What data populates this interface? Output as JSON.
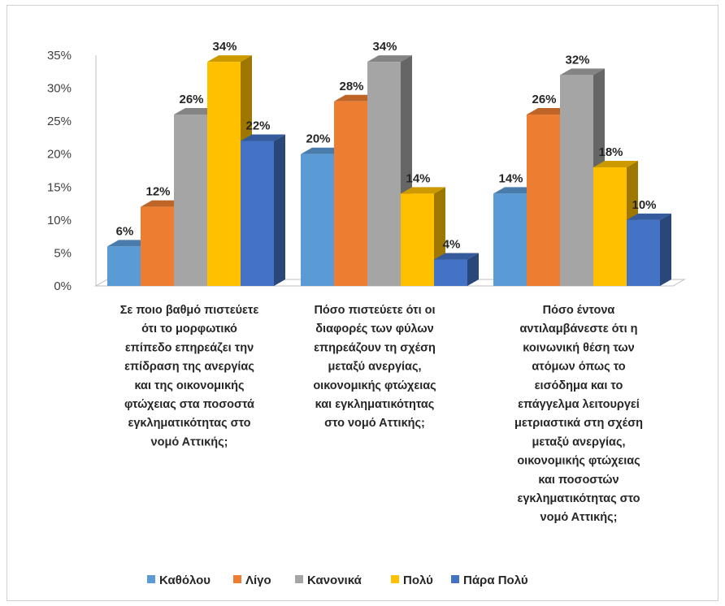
{
  "chart_data": {
    "type": "bar",
    "title": "",
    "xlabel": "",
    "ylabel": "",
    "ylim": [
      0,
      35
    ],
    "yticks": [
      "0%",
      "5%",
      "10%",
      "15%",
      "20%",
      "25%",
      "30%",
      "35%"
    ],
    "yticks_values": [
      0,
      5,
      10,
      15,
      20,
      25,
      30,
      35
    ],
    "grid": false,
    "legend_position": "bottom",
    "categories": [
      [
        "Σε ποιο βαθμό πιστεύετε",
        "ότι το μορφωτικό",
        "επίπεδο επηρεάζει την",
        "επίδραση της ανεργίας",
        "και της οικονομικής",
        "φτώχειας στα ποσοστά",
        "εγκληματικότητας στο",
        "νομό Αττικής;"
      ],
      [
        "Πόσο πιστεύετε ότι οι",
        "διαφορές των φύλων",
        "επηρεάζουν τη σχέση",
        "μεταξύ ανεργίας,",
        "οικονομικής φτώχειας",
        "και εγκληματικότητας",
        "στο νομό Αττικής;"
      ],
      [
        "Πόσο έντονα",
        "αντιλαμβάνεστε ότι η",
        "κοινωνική θέση των",
        "ατόμων όπως το",
        "εισόδημα και το",
        "επάγγελμα λειτουργεί",
        "μετριαστικά στη σχέση",
        "μεταξύ ανεργίας,",
        "οικονομικής φτώχειας",
        "και ποσοστών",
        "εγκληματικότητας στο",
        "νομό Αττικής;"
      ]
    ],
    "series": [
      {
        "name": "Καθόλου",
        "color": "#5b9bd5",
        "values": [
          6,
          20,
          14
        ],
        "labels": [
          "6%",
          "20%",
          "14%"
        ]
      },
      {
        "name": "Λίγο",
        "color": "#ed7d31",
        "values": [
          12,
          28,
          26
        ],
        "labels": [
          "12%",
          "28%",
          "26%"
        ]
      },
      {
        "name": "Κανονικά",
        "color": "#a5a5a5",
        "values": [
          26,
          34,
          32
        ],
        "labels": [
          "26%",
          "34%",
          "32%"
        ]
      },
      {
        "name": "Πολύ",
        "color": "#ffc000",
        "values": [
          34,
          14,
          18
        ],
        "labels": [
          "34%",
          "14%",
          "18%"
        ]
      },
      {
        "name": "Πάρα Πολύ",
        "color": "#4472c4",
        "values": [
          22,
          4,
          10
        ],
        "labels": [
          "22%",
          "4%",
          "10%"
        ]
      }
    ]
  }
}
